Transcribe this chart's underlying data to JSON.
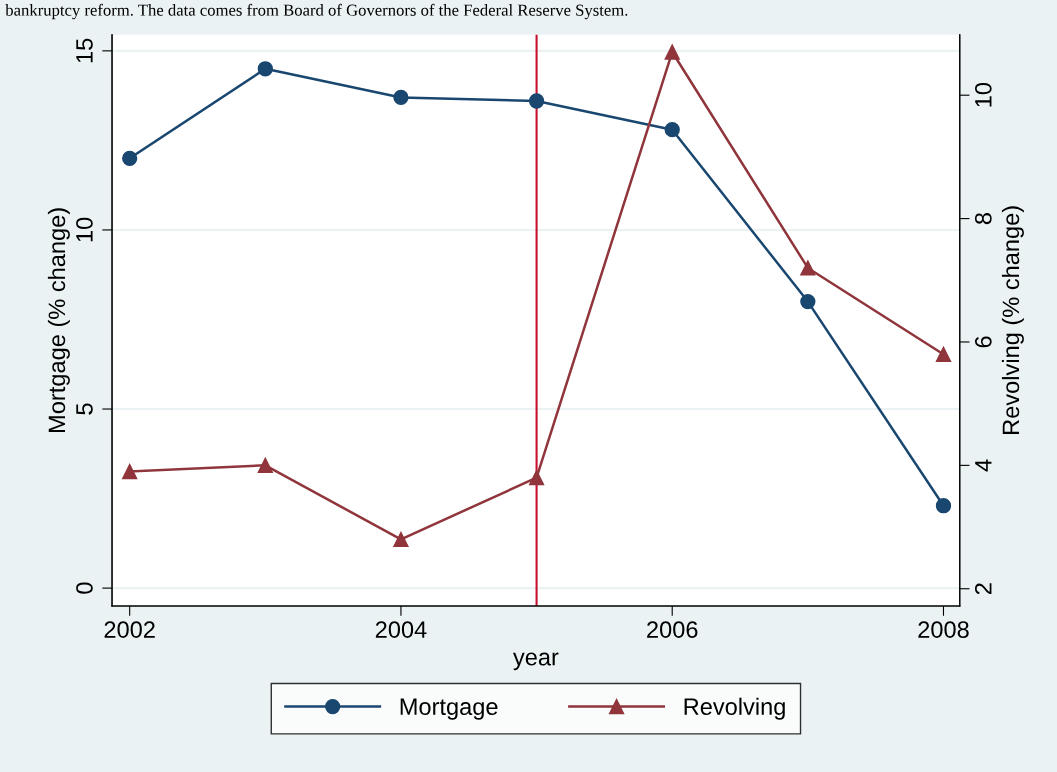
{
  "chart_data": {
    "type": "line",
    "xlabel": "year",
    "ylabel": "Mortgage (% change)",
    "y2label": "Revolving (% change)",
    "annotations": [
      "bankruptcy reform. The data comes from Board of Governors of the Federal Reserve System."
    ],
    "x": [
      2002,
      2003,
      2004,
      2005,
      2006,
      2007,
      2008
    ],
    "series": [
      {
        "name": "Mortgage",
        "color": "#1a476f",
        "marker": "circle",
        "values": [
          12.0,
          14.5,
          13.7,
          13.6,
          12.8,
          8.0,
          2.3
        ]
      },
      {
        "name": "Revolving",
        "color": "#90353b",
        "marker": "triangle",
        "axis": "y2",
        "values": [
          3.9,
          4.0,
          2.8,
          3.8,
          10.7,
          7.2,
          5.8
        ]
      }
    ],
    "xlim": [
      2001.87,
      2008.12
    ],
    "xticks": [
      2002,
      2004,
      2006,
      2008
    ],
    "ylim": [
      -0.5,
      15.45
    ],
    "yticks": [
      0,
      5,
      10,
      15
    ],
    "y2lim": [
      1.72,
      10.98
    ],
    "y2ticks": [
      2,
      4,
      6,
      8,
      10
    ],
    "ref_lines": [
      {
        "axis": "x",
        "value": 2005,
        "color": "#c8102e"
      }
    ],
    "grid": "y",
    "legend": "bottom"
  }
}
